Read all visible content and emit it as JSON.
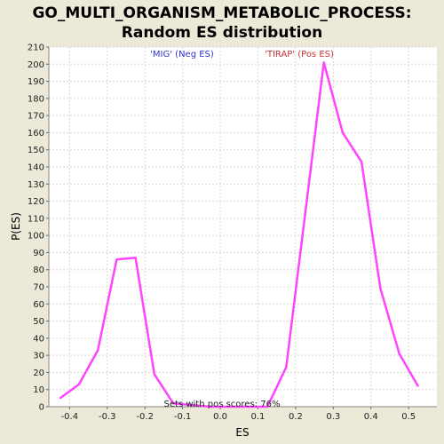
{
  "colors": {
    "background": "#ece9d8",
    "plot_background": "#ffffff",
    "grid": "#d8d8d8",
    "line": "#ff44ff",
    "neg_label": "#3333cc",
    "pos_label": "#cc3333"
  },
  "chart_data": {
    "type": "line",
    "title_line1": "GO_MULTI_ORGANISM_METABOLIC_PROCESS:",
    "title_line2": "Random ES distribution",
    "xlabel": "ES",
    "ylabel": "P(ES)",
    "xlim": [
      -0.455,
      0.575
    ],
    "ylim": [
      0,
      210
    ],
    "grid": true,
    "x_ticks": [
      -0.4,
      -0.3,
      -0.2,
      -0.1,
      0.0,
      0.1,
      0.2,
      0.3,
      0.4,
      0.5
    ],
    "x_tick_labels": [
      "-0.4",
      "-0.3",
      "-0.2",
      "-0.1",
      "0.0",
      "0.1",
      "0.2",
      "0.3",
      "0.4",
      "0.5"
    ],
    "y_ticks": [
      0,
      10,
      20,
      30,
      40,
      50,
      60,
      70,
      80,
      90,
      100,
      110,
      120,
      130,
      140,
      150,
      160,
      170,
      180,
      190,
      200,
      210
    ],
    "series": [
      {
        "x": [
          -0.425,
          -0.375,
          -0.325,
          -0.275,
          -0.225,
          -0.175,
          -0.125,
          -0.075,
          -0.025,
          0.025,
          0.075,
          0.125,
          0.175,
          0.225,
          0.275,
          0.325,
          0.375,
          0.425,
          0.475,
          0.525
        ],
        "y": [
          5,
          13,
          33,
          86,
          87,
          19,
          2,
          1,
          0,
          0,
          0,
          0,
          23,
          112,
          201,
          160,
          143,
          69,
          31,
          12
        ]
      }
    ],
    "annotations": {
      "neg_label": "'MIG' (Neg ES)",
      "pos_label": "'TIRAP' (Pos ES)",
      "pos_scores": "Sets with pos scores: 76%"
    }
  }
}
